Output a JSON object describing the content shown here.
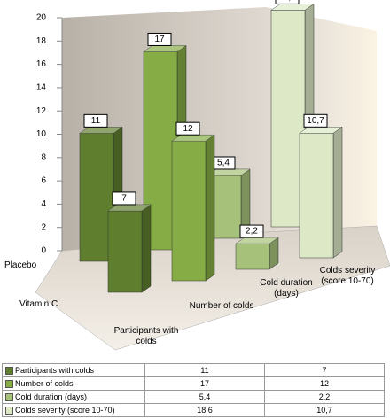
{
  "chart_data": {
    "type": "bar3d",
    "groups": [
      "Placebo",
      "Vitamin C"
    ],
    "series": [
      {
        "name": "Participants with colds",
        "color": "#5f7f2f",
        "values": [
          11,
          7
        ]
      },
      {
        "name": "Number of colds",
        "color": "#86ac45",
        "values": [
          17,
          12
        ]
      },
      {
        "name": "Cold duration (days)",
        "color": "#a6c27a",
        "values": [
          5.4,
          2.2
        ],
        "value_labels": [
          "5,4",
          "2,2"
        ]
      },
      {
        "name": "Colds severity (score 10-70)",
        "color": "#dce8c6",
        "values": [
          18.6,
          10.7
        ],
        "value_labels": [
          "18,6",
          "10,7"
        ]
      }
    ],
    "ylim": [
      0,
      20
    ],
    "yticks": [
      0,
      2,
      4,
      6,
      8,
      10,
      12,
      14,
      16,
      18,
      20
    ]
  }
}
